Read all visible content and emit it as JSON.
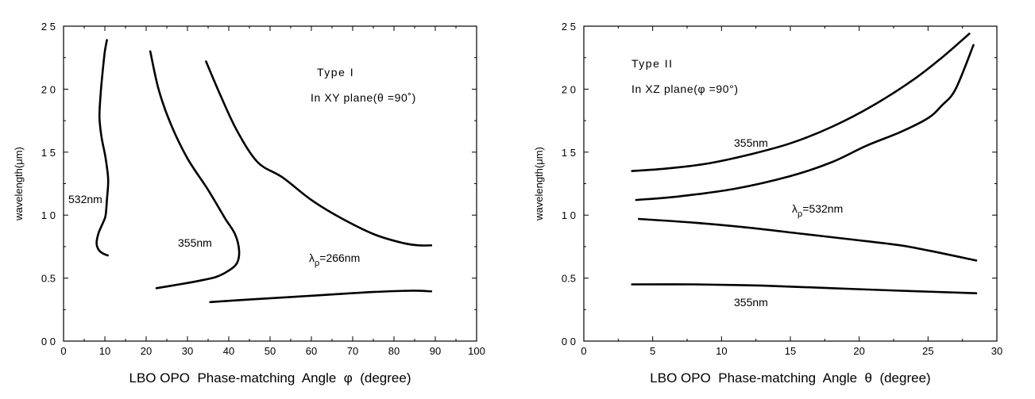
{
  "chart_data": [
    {
      "type": "line",
      "title": "",
      "xlabel": "LBO OPO  Phase-matching  Angle  φ  (degree)",
      "ylabel": "wavelength(μm)",
      "xlim": [
        0,
        100
      ],
      "ylim": [
        0,
        2.5
      ],
      "x_ticks": [
        "0",
        "10",
        "20",
        "30",
        "40",
        "50",
        "60",
        "70",
        "80",
        "90",
        "100"
      ],
      "y_ticks": [
        "0 0",
        "0.5",
        "1 0",
        "1 5",
        "2 0",
        "2 5"
      ],
      "grid": false,
      "annotations": {
        "type_label": "Type I",
        "plane_label": "In XY plane(θ =90˚)"
      },
      "series": [
        {
          "name": "532nm",
          "label": "532nm",
          "x": [
            10.5,
            10.0,
            9.5,
            9.0,
            8.7,
            9.2,
            10.2,
            10.8,
            10.5,
            10.2,
            9.7,
            9.0,
            8.4,
            8.0,
            8.4,
            9.3,
            10.7
          ],
          "y": [
            2.39,
            2.3,
            2.15,
            1.97,
            1.78,
            1.62,
            1.45,
            1.28,
            1.12,
            1.0,
            0.95,
            0.9,
            0.85,
            0.78,
            0.73,
            0.7,
            0.68
          ]
        },
        {
          "name": "355nm",
          "label": "355nm",
          "x": [
            21,
            23,
            26,
            30,
            35,
            39,
            41.5,
            42.5,
            42,
            40,
            37,
            33,
            28,
            22.5
          ],
          "y": [
            2.3,
            2.0,
            1.72,
            1.45,
            1.2,
            0.98,
            0.85,
            0.72,
            0.62,
            0.56,
            0.51,
            0.48,
            0.45,
            0.42
          ]
        },
        {
          "name": "λρ=266nm upper",
          "label": "λρ=266nm",
          "x": [
            34.5,
            38,
            42,
            47,
            53,
            60,
            67,
            75,
            82,
            86,
            89
          ],
          "y": [
            2.22,
            1.95,
            1.67,
            1.42,
            1.3,
            1.12,
            0.98,
            0.85,
            0.78,
            0.76,
            0.76
          ]
        },
        {
          "name": "λρ=266nm lower",
          "x": [
            35.5,
            45,
            55,
            65,
            75,
            84,
            89
          ],
          "y": [
            0.31,
            0.33,
            0.35,
            0.37,
            0.39,
            0.4,
            0.395
          ]
        }
      ]
    },
    {
      "type": "line",
      "title": "",
      "xlabel": "LBO OPO  Phase-matching  Angle  θ  (degree)",
      "ylabel": "wavelength(μm)",
      "xlim": [
        0,
        30
      ],
      "ylim": [
        0,
        2.5
      ],
      "x_ticks": [
        "0",
        "5",
        "10",
        "15",
        "20",
        "25",
        "30"
      ],
      "y_ticks": [
        "0 0",
        "0.5",
        "1 0",
        "1 5",
        "2 0",
        "2 5"
      ],
      "grid": false,
      "annotations": {
        "type_label": "Type II",
        "plane_label": "In XZ plane(φ =90°)"
      },
      "series": [
        {
          "name": "355nm upper",
          "label": "355nm",
          "x": [
            3.5,
            6,
            9,
            12,
            15,
            18,
            21,
            24,
            26,
            28
          ],
          "y": [
            1.35,
            1.37,
            1.41,
            1.48,
            1.57,
            1.7,
            1.87,
            2.08,
            2.25,
            2.44
          ]
        },
        {
          "name": "λρ=532nm upper",
          "label": "λρ=532nm",
          "x": [
            3.8,
            7,
            11,
            15,
            18,
            20.5,
            23,
            25,
            26,
            27,
            28.3
          ],
          "y": [
            1.12,
            1.15,
            1.21,
            1.31,
            1.42,
            1.55,
            1.66,
            1.77,
            1.87,
            2.0,
            2.35
          ]
        },
        {
          "name": "λρ=532nm lower",
          "x": [
            4,
            8,
            12,
            16,
            20,
            23,
            25,
            28.5
          ],
          "y": [
            0.97,
            0.94,
            0.9,
            0.85,
            0.8,
            0.76,
            0.72,
            0.64
          ]
        },
        {
          "name": "355nm lower",
          "label": "355nm",
          "x": [
            3.5,
            8,
            13,
            18,
            23,
            28.5
          ],
          "y": [
            0.45,
            0.45,
            0.44,
            0.42,
            0.4,
            0.38
          ]
        }
      ]
    }
  ]
}
